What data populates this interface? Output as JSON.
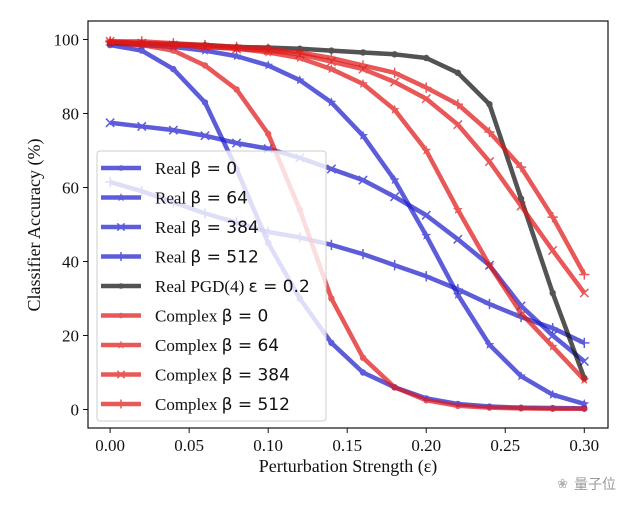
{
  "chart_data": {
    "type": "line",
    "title": "",
    "xlabel": "Perturbation Strength (ε)",
    "ylabel": "Classifier Accuracy (%)",
    "xlim": [
      -0.014,
      0.315
    ],
    "ylim": [
      -5,
      105
    ],
    "xticks": [
      0.0,
      0.05,
      0.1,
      0.15,
      0.2,
      0.25,
      0.3
    ],
    "xtick_labels": [
      "0.00",
      "0.05",
      "0.10",
      "0.15",
      "0.20",
      "0.25",
      "0.30"
    ],
    "yticks": [
      0,
      20,
      40,
      60,
      80,
      100
    ],
    "ytick_labels": [
      "0",
      "20",
      "40",
      "60",
      "80",
      "100"
    ],
    "grid": false,
    "legend_position": "lower-left",
    "x": [
      0.0,
      0.02,
      0.04,
      0.06,
      0.08,
      0.1,
      0.12,
      0.14,
      0.16,
      0.18,
      0.2,
      0.22,
      0.24,
      0.26,
      0.28,
      0.3
    ],
    "series": [
      {
        "name": "Real β = 0",
        "prefix": "Real ",
        "math": "β = 0",
        "color": "#1f1fcc",
        "marker": "dot",
        "values": [
          98.5,
          97,
          92,
          83,
          65,
          45,
          30,
          18,
          10,
          6,
          3,
          1.5,
          0.8,
          0.5,
          0.4,
          0.3
        ]
      },
      {
        "name": "Real β = 64",
        "prefix": "Real ",
        "math": "β = 64",
        "color": "#1f1fcc",
        "marker": "star",
        "values": [
          99,
          98.5,
          98,
          97,
          95.5,
          93,
          89,
          83,
          74,
          62,
          47,
          31,
          17.5,
          9,
          4,
          1.5
        ]
      },
      {
        "name": "Real β = 384",
        "prefix": "Real ",
        "math": "β = 384",
        "color": "#1f1fcc",
        "marker": "x",
        "values": [
          77.5,
          76.5,
          75.5,
          74,
          72,
          70.5,
          68,
          65,
          62,
          57.5,
          52.5,
          46,
          39,
          28,
          20,
          13
        ]
      },
      {
        "name": "Real β = 512",
        "prefix": "Real ",
        "math": "β = 512",
        "color": "#1f1fcc",
        "marker": "plus",
        "values": [
          61.5,
          59,
          56,
          53,
          50.5,
          48,
          46.5,
          44.5,
          42,
          39,
          36,
          32.5,
          28.5,
          25,
          22,
          18
        ]
      },
      {
        "name": "Real PGD(4) ε = 0.2",
        "prefix": "Real PGD(4) ",
        "math": "ε = 0.2",
        "color": "#111111",
        "marker": "dot",
        "values": [
          99,
          99,
          98.8,
          98.5,
          98,
          97.8,
          97.5,
          97,
          96.5,
          96,
          95,
          91,
          82.5,
          57,
          31.5,
          8.5
        ]
      },
      {
        "name": "Complex β = 0",
        "prefix": "Complex ",
        "math": "β = 0",
        "color": "#e01818",
        "marker": "dot",
        "values": [
          99,
          98.5,
          97,
          93,
          86.5,
          74.5,
          54,
          30,
          14,
          6,
          2.5,
          1,
          0.5,
          0.3,
          0.2,
          0.2
        ]
      },
      {
        "name": "Complex β = 64",
        "prefix": "Complex ",
        "math": "β = 64",
        "color": "#e01818",
        "marker": "star",
        "values": [
          99.5,
          99,
          98.5,
          98,
          97.5,
          96.5,
          95,
          92,
          88,
          81,
          70,
          54,
          39,
          26,
          17,
          8
        ]
      },
      {
        "name": "Complex β = 384",
        "prefix": "Complex ",
        "math": "β = 384",
        "color": "#e01818",
        "marker": "x",
        "values": [
          99.5,
          99,
          98.5,
          98,
          97.5,
          97,
          96,
          94,
          92,
          88.5,
          84,
          77,
          67,
          55,
          43,
          31.5
        ]
      },
      {
        "name": "Complex β = 512",
        "prefix": "Complex ",
        "math": "β = 512",
        "color": "#e01818",
        "marker": "plus",
        "values": [
          99.5,
          99.5,
          99,
          98.5,
          98,
          97.5,
          96.5,
          95,
          93,
          91,
          87,
          82.5,
          75,
          65.5,
          52,
          36.5
        ]
      }
    ]
  },
  "watermark": {
    "icon": "wechat-icon",
    "text": "量子位"
  }
}
